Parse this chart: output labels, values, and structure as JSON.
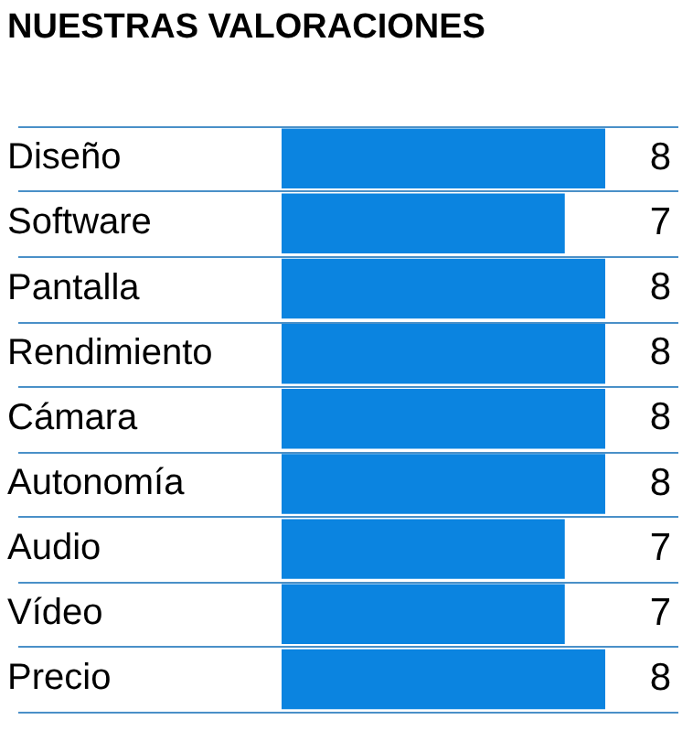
{
  "chart_data": {
    "type": "bar",
    "orientation": "horizontal",
    "title": "NUESTRAS VALORACIONES",
    "categories": [
      "Diseño",
      "Software",
      "Pantalla",
      "Rendimiento",
      "Cámara",
      "Autonomía",
      "Audio",
      "Vídeo",
      "Precio"
    ],
    "values": [
      8,
      7,
      8,
      8,
      8,
      8,
      7,
      7,
      8
    ],
    "color": "#0b84e0",
    "xlim": [
      0,
      8
    ],
    "tick_labels": "y",
    "data_labels": true,
    "grid": "y",
    "legend": false
  }
}
